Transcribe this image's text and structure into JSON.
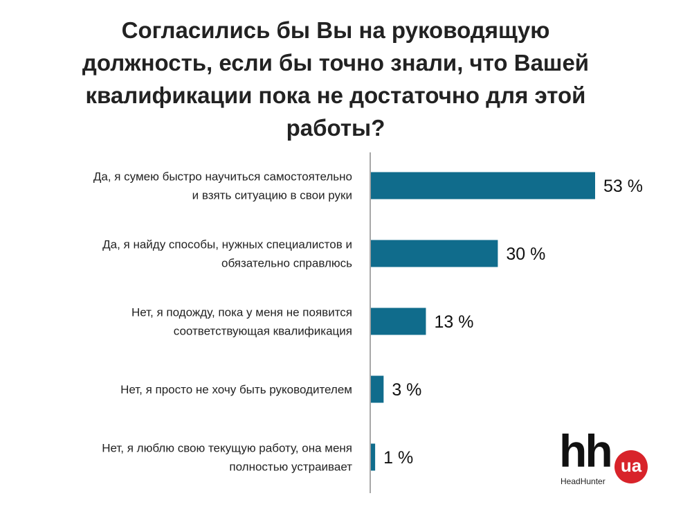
{
  "chart_data": {
    "type": "bar",
    "orientation": "horizontal",
    "title_lines": [
      "Согласились бы Вы на руководящую",
      "должность, если бы точно знали, что Вашей",
      "квалификации пока не достаточно для этой",
      "работы?"
    ],
    "categories": [
      [
        "Да, я сумею быстро научиться самостоятельно",
        "и взять ситуацию в свои руки"
      ],
      [
        "Да, я найду способы, нужных специалистов и",
        "обязательно справлюсь"
      ],
      [
        "Нет, я подожду, пока у меня не появится",
        "соответствующая квалификация"
      ],
      [
        "Нет, я просто не хочу быть руководителем"
      ],
      [
        "Нет, я люблю свою текущую работу, она меня",
        "полностью устраивает"
      ]
    ],
    "values": [
      53,
      30,
      13,
      3,
      1
    ],
    "value_labels": [
      "53 %",
      "30 %",
      "13 %",
      "3 %",
      "1 %"
    ],
    "unit": "%",
    "xlim": [
      0,
      53
    ],
    "bar_color": "#106c8c",
    "grid": false,
    "legend": "none"
  },
  "logo": {
    "mark": "hh",
    "badge": "ua",
    "subtitle": "HeadHunter"
  }
}
